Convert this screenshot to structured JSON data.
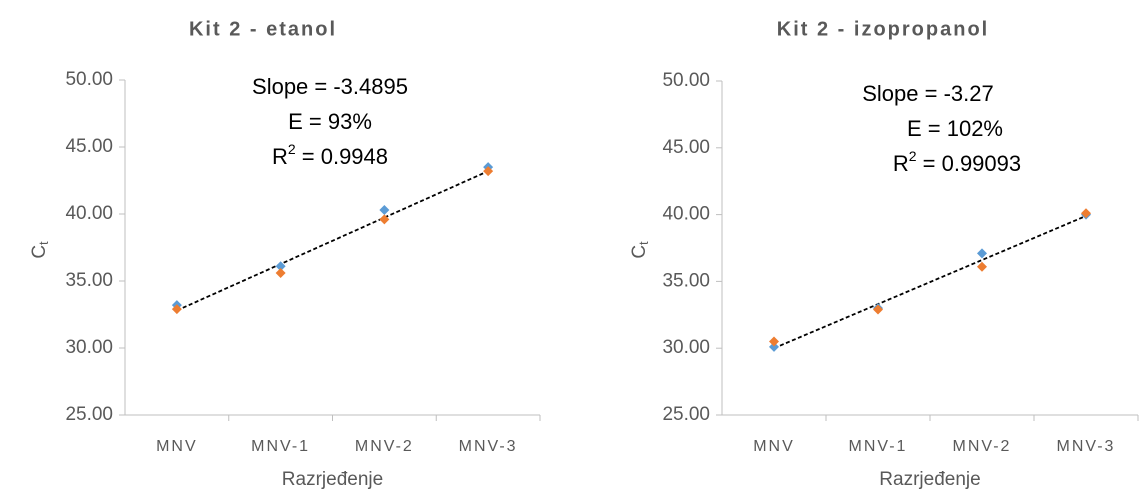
{
  "chart_data": [
    {
      "type": "scatter",
      "title": "Kit 2 - etanol",
      "x_label": "Razrjeđenje",
      "y_label": {
        "main": "C",
        "sub": "t"
      },
      "categories": [
        "MNV",
        "MNV-1",
        "MNV-2",
        "MNV-3"
      ],
      "series": [
        {
          "color": "#5b9bd5",
          "values": [
            33.2,
            36.1,
            40.3,
            43.5
          ]
        },
        {
          "color": "#ed7d31",
          "values": [
            32.9,
            35.6,
            39.6,
            43.2
          ]
        }
      ],
      "trendline": {
        "color": "#000000",
        "values": [
          32.8,
          43.2
        ]
      },
      "annotations": {
        "slope": "Slope = -3.4895",
        "efficiency": "E = 93%",
        "r2": {
          "main": "R",
          "sup": "2",
          "rest": " = 0.9948"
        }
      },
      "ylim": [
        25,
        50
      ],
      "yticks": [
        {
          "value": 25,
          "label": "25.00"
        },
        {
          "value": 30,
          "label": "30.00"
        },
        {
          "value": 35,
          "label": "35.00"
        },
        {
          "value": 40,
          "label": "40.00"
        },
        {
          "value": 45,
          "label": "45.00"
        },
        {
          "value": 50,
          "label": "50.00"
        }
      ],
      "grid": false
    },
    {
      "type": "scatter",
      "title": "Kit 2 - izopropanol",
      "x_label": "Razrjeđenje",
      "y_label": {
        "main": "C",
        "sub": "t"
      },
      "categories": [
        "MNV",
        "MNV-1",
        "MNV-2",
        "MNV-3"
      ],
      "series": [
        {
          "color": "#5b9bd5",
          "values": [
            30.1,
            33.0,
            37.1,
            40.0
          ]
        },
        {
          "color": "#ed7d31",
          "values": [
            30.5,
            32.9,
            36.1,
            40.1
          ]
        }
      ],
      "trendline": {
        "color": "#000000",
        "values": [
          30.0,
          39.9
        ]
      },
      "annotations": {
        "slope": "Slope = -3.27",
        "efficiency": "E = 102%",
        "r2": {
          "main": "R",
          "sup": "2",
          "rest": " = 0.99093"
        }
      },
      "ylim": [
        25,
        50
      ],
      "yticks": [
        {
          "value": 25,
          "label": "25.00"
        },
        {
          "value": 30,
          "label": "30.00"
        },
        {
          "value": 35,
          "label": "35.00"
        },
        {
          "value": 40,
          "label": "40.00"
        },
        {
          "value": 45,
          "label": "45.00"
        },
        {
          "value": 50,
          "label": "50.00"
        }
      ],
      "grid": false
    }
  ]
}
